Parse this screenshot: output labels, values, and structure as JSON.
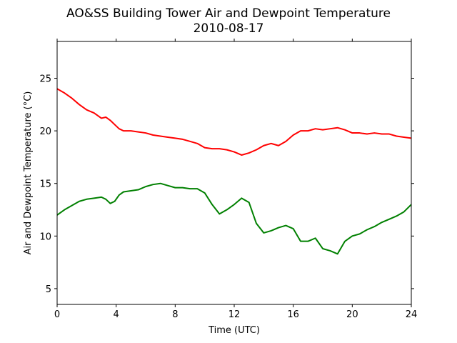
{
  "chart_data": {
    "type": "line",
    "title": "AO&SS Building Tower Air and Dewpoint Temperature",
    "subtitle": "2010-08-17",
    "xlabel": "Time (UTC)",
    "ylabel": "Air and Dewpoint Temperature (°C)",
    "xlim": [
      0,
      24
    ],
    "ylim": [
      3.5,
      28.5
    ],
    "xticks": [
      0,
      4,
      8,
      12,
      16,
      20,
      24
    ],
    "yticks": [
      5,
      10,
      15,
      20,
      25
    ],
    "xtick_labels": [
      "0",
      "4",
      "8",
      "12",
      "16",
      "20",
      "24"
    ],
    "ytick_labels": [
      "5",
      "10",
      "15",
      "20",
      "25"
    ],
    "grid": false,
    "legend": "none",
    "series": [
      {
        "color": "#ff0000",
        "x": [
          0,
          0.5,
          1,
          1.5,
          2,
          2.5,
          3,
          3.3,
          3.6,
          3.9,
          4.2,
          4.5,
          5,
          5.5,
          6,
          6.5,
          7,
          7.5,
          8,
          8.5,
          9,
          9.5,
          10,
          10.5,
          11,
          11.5,
          12,
          12.5,
          13,
          13.5,
          14,
          14.5,
          15,
          15.5,
          16,
          16.5,
          17,
          17.5,
          18,
          18.5,
          19,
          19.5,
          20,
          20.5,
          21,
          21.5,
          22,
          22.5,
          23,
          23.5,
          24
        ],
        "values": [
          24.0,
          23.6,
          23.1,
          22.5,
          22.0,
          21.7,
          21.2,
          21.3,
          21.0,
          20.6,
          20.2,
          20.0,
          20.0,
          19.9,
          19.8,
          19.6,
          19.5,
          19.4,
          19.3,
          19.2,
          19.0,
          18.8,
          18.4,
          18.3,
          18.3,
          18.2,
          18.0,
          17.7,
          17.9,
          18.2,
          18.6,
          18.8,
          18.6,
          19.0,
          19.6,
          20.0,
          20.0,
          20.2,
          20.1,
          20.2,
          20.3,
          20.1,
          19.8,
          19.8,
          19.7,
          19.8,
          19.7,
          19.7,
          19.5,
          19.4,
          19.3
        ]
      },
      {
        "color": "#008000",
        "x": [
          0,
          0.5,
          1,
          1.5,
          2,
          2.5,
          3,
          3.3,
          3.6,
          3.9,
          4.2,
          4.5,
          5,
          5.5,
          6,
          6.5,
          7,
          7.5,
          8,
          8.5,
          9,
          9.5,
          10,
          10.5,
          11,
          11.5,
          12,
          12.5,
          13,
          13.5,
          14,
          14.5,
          15,
          15.5,
          16,
          16.5,
          17,
          17.5,
          18,
          18.5,
          19,
          19.5,
          20,
          20.5,
          21,
          21.5,
          22,
          22.5,
          23,
          23.5,
          24
        ],
        "values": [
          12.0,
          12.5,
          12.9,
          13.3,
          13.5,
          13.6,
          13.7,
          13.5,
          13.1,
          13.3,
          13.9,
          14.2,
          14.3,
          14.4,
          14.7,
          14.9,
          15.0,
          14.8,
          14.6,
          14.6,
          14.5,
          14.5,
          14.1,
          13.0,
          12.1,
          12.5,
          13.0,
          13.6,
          13.2,
          11.2,
          10.3,
          10.5,
          10.8,
          11.0,
          10.7,
          9.5,
          9.5,
          9.8,
          8.8,
          8.6,
          8.3,
          9.5,
          10.0,
          10.2,
          10.6,
          10.9,
          11.3,
          11.6,
          11.9,
          12.3,
          13.0
        ]
      }
    ]
  }
}
